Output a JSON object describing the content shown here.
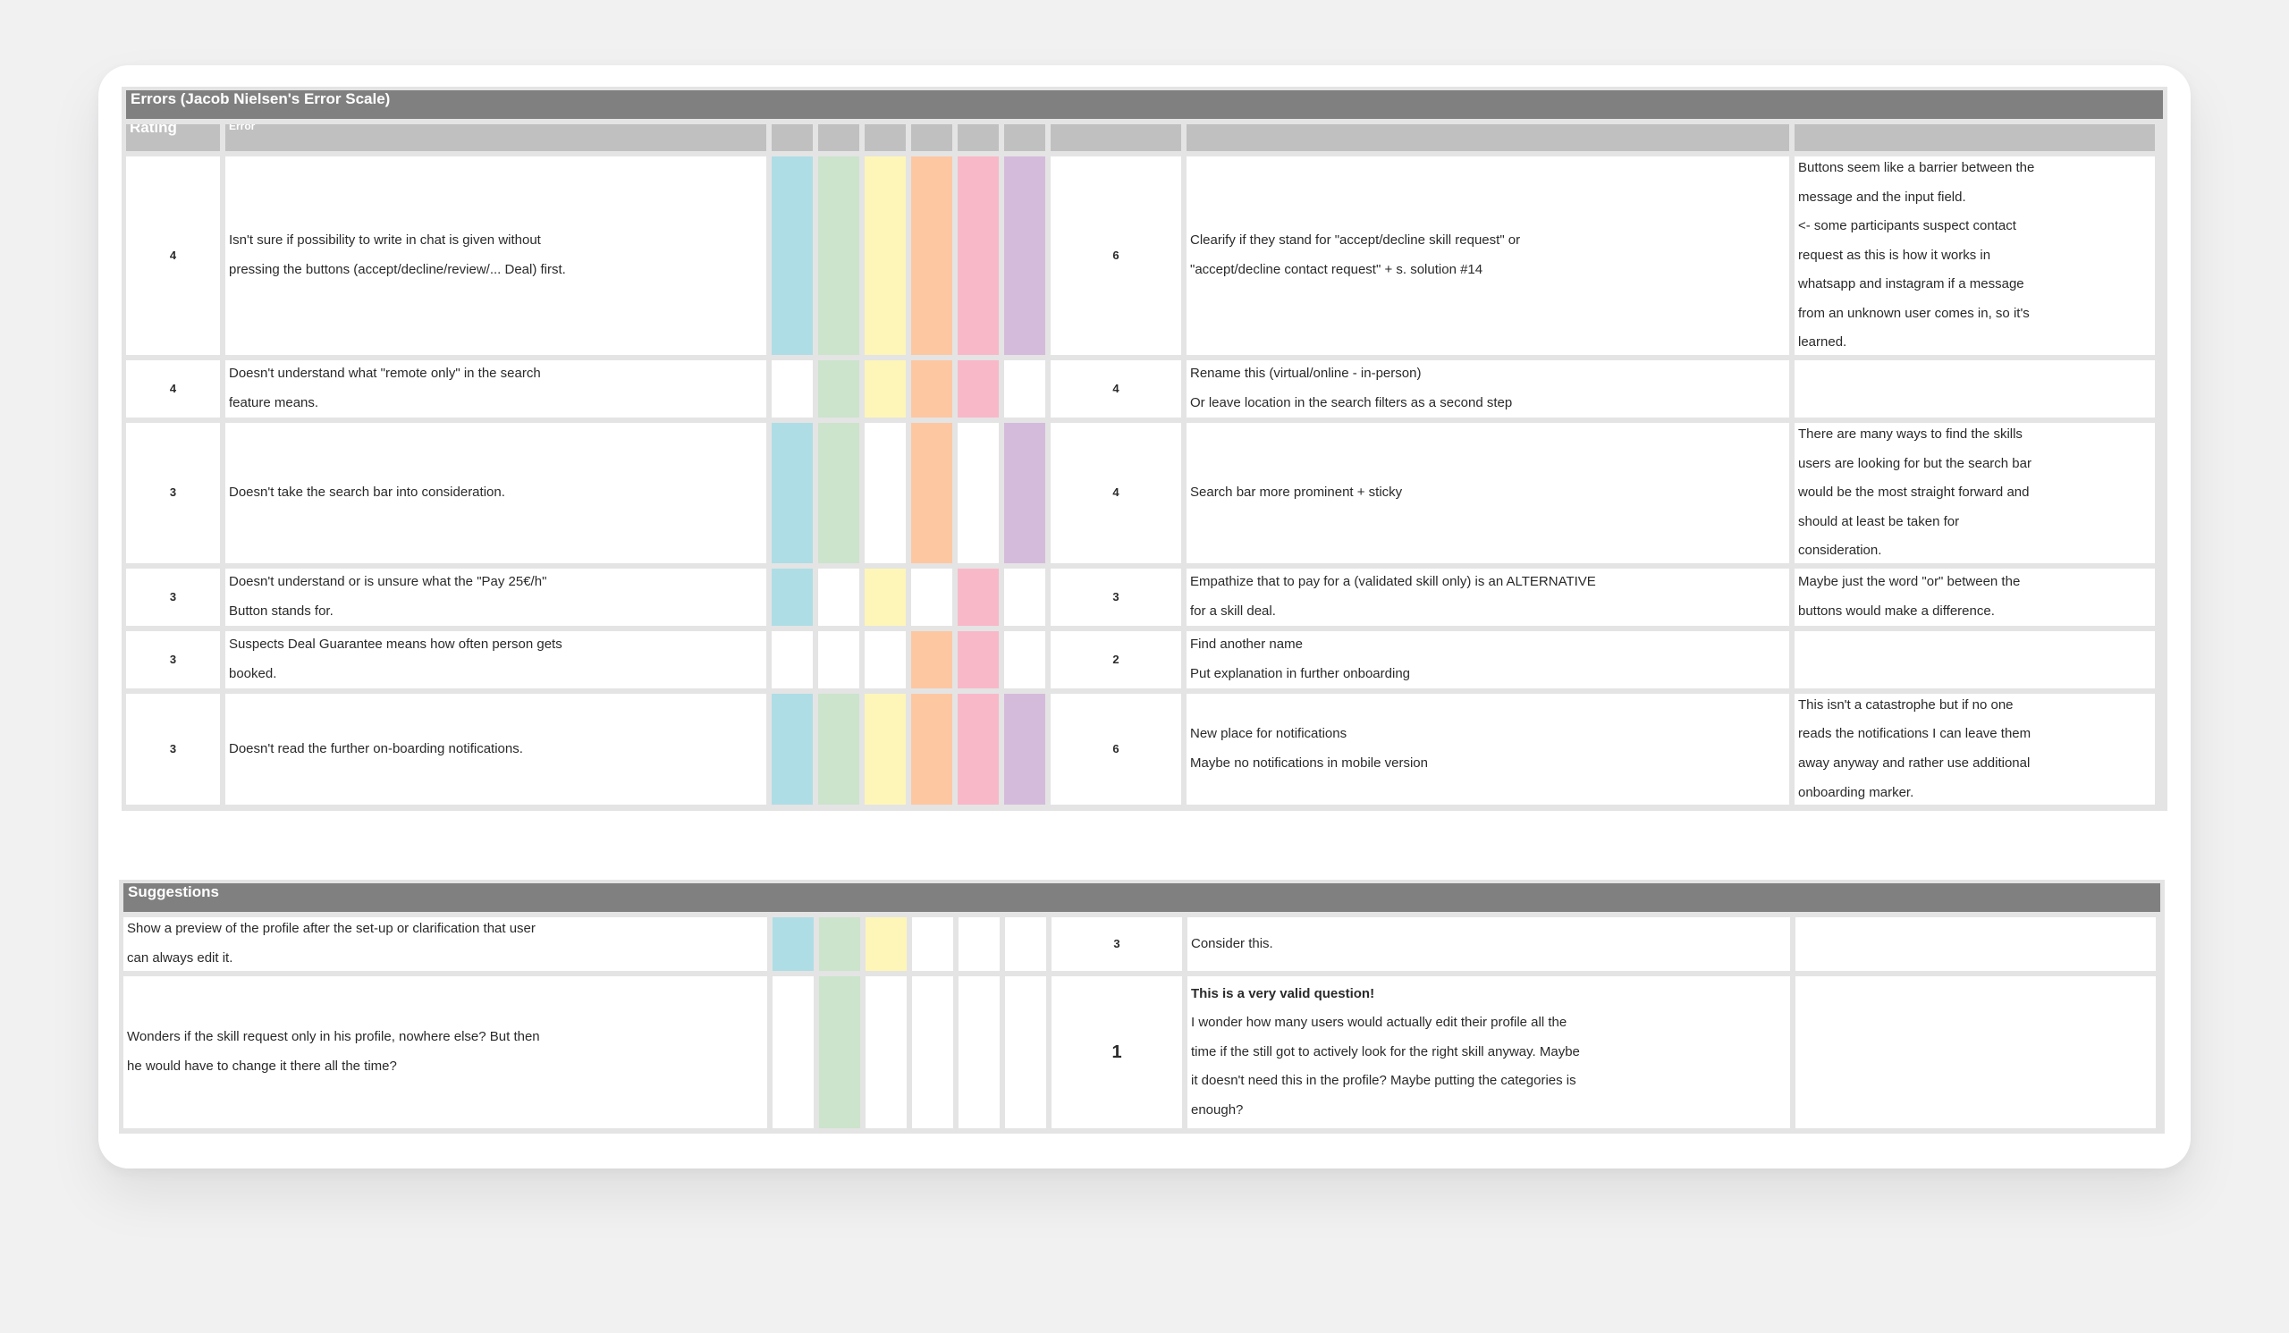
{
  "errors": {
    "title": "Errors (Jacob Nielsen's Error Scale)",
    "headers": {
      "rating": "Rating",
      "error": "Error"
    },
    "rows": [
      {
        "rating": "4",
        "error": [
          "Isn't sure if possibility to write in chat is given without",
          "pressing the buttons (accept/decline/review/... Deal) first."
        ],
        "swatches": [
          "blue",
          "green",
          "yellow",
          "orange",
          "pink",
          "purple"
        ],
        "count": "6",
        "solution": [
          "Clearify if they stand for \"accept/decline skill request\" or",
          "\"accept/decline contact request\" + s. solution #14"
        ],
        "comment": [
          "Buttons seem like a barrier between the",
          "message and the input field.",
          "<- some participants suspect contact",
          "request as this is how it works in",
          "whatsapp and instagram if a message",
          "from an unknown user comes in, so it's",
          "learned."
        ]
      },
      {
        "rating": "4",
        "error": [
          "Doesn't understand what \"remote only\" in the search",
          "feature means."
        ],
        "swatches": [
          "",
          "green",
          "yellow",
          "orange",
          "pink",
          ""
        ],
        "count": "4",
        "solution": [
          "Rename this (virtual/online - in-person)",
          "Or leave location in the search filters as a second step"
        ],
        "comment": []
      },
      {
        "rating": "3",
        "error": [
          "Doesn't take the search bar into consideration."
        ],
        "swatches": [
          "blue",
          "green",
          "",
          "orange",
          "",
          "purple"
        ],
        "count": "4",
        "solution": [
          "Search bar more prominent + sticky"
        ],
        "comment": [
          "There are many ways to find the skills",
          "users are looking for but the search bar",
          "would be the most straight forward and",
          "should at least be taken for",
          "consideration."
        ]
      },
      {
        "rating": "3",
        "error": [
          "Doesn't understand or is unsure what the \"Pay 25€/h\"",
          "Button stands for."
        ],
        "swatches": [
          "blue",
          "",
          "yellow",
          "",
          "pink",
          ""
        ],
        "count": "3",
        "solution": [
          "Empathize that to pay for a (validated skill only) is an ALTERNATIVE",
          "for a skill deal."
        ],
        "comment": [
          "Maybe just the word \"or\" between the",
          "buttons would make a difference."
        ]
      },
      {
        "rating": "3",
        "error": [
          "Suspects Deal Guarantee means how often person gets",
          "booked."
        ],
        "swatches": [
          "",
          "",
          "",
          "orange",
          "pink",
          ""
        ],
        "count": "2",
        "solution": [
          "Find another name",
          "Put explanation in further onboarding"
        ],
        "comment": []
      },
      {
        "rating": "3",
        "error": [
          "Doesn't read the further on-boarding notifications."
        ],
        "swatches": [
          "blue",
          "green",
          "yellow",
          "orange",
          "pink",
          "purple"
        ],
        "count": "6",
        "solution": [
          "New place for notifications",
          "Maybe no notifications in mobile version"
        ],
        "comment": [
          "This isn't a catastrophe but if no one",
          "reads the notifications I can leave them",
          "away anyway and rather use additional",
          "onboarding marker."
        ]
      }
    ]
  },
  "suggestions": {
    "title": "Suggestions",
    "rows": [
      {
        "text": [
          "Show a preview of the profile after the set-up or clarification that user",
          "can always edit it."
        ],
        "swatches": [
          "blue",
          "green",
          "yellow",
          "",
          "",
          ""
        ],
        "count": "3",
        "response_bold": "",
        "response": [
          "Consider this."
        ],
        "comment": []
      },
      {
        "text": [
          "Wonders if the skill request only in his profile, nowhere else? But then",
          "he would have to change it there all the time?"
        ],
        "swatches": [
          "",
          "green",
          "",
          "",
          "",
          ""
        ],
        "count": "1",
        "response_bold": "This is a very valid question!",
        "response": [
          "I wonder how many users would actually edit their profile all the",
          "time if the still got to actively look for the right skill anyway. Maybe",
          "it doesn't need this in the profile? Maybe putting the categories is",
          "enough?"
        ],
        "comment": []
      }
    ]
  },
  "colors": {
    "blue": "#aedde6",
    "green": "#cce3cc",
    "yellow": "#fef6b8",
    "orange": "#fdc7a2",
    "pink": "#f9b8c8",
    "purple": "#d4bbdb",
    "section_header": "#808080",
    "column_header": "#c0c0c0"
  }
}
